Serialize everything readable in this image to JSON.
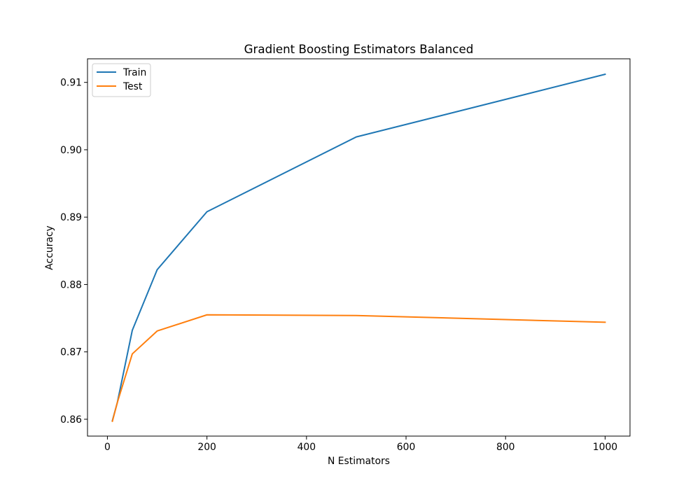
{
  "chart_data": {
    "type": "line",
    "title": "Gradient Boosting Estimators Balanced",
    "xlabel": "N Estimators",
    "ylabel": "Accuracy",
    "xlim": [
      -40,
      1050
    ],
    "ylim": [
      0.8575,
      0.9135
    ],
    "xticks": [
      0,
      200,
      400,
      600,
      800,
      1000
    ],
    "xtick_labels": [
      "0",
      "200",
      "400",
      "600",
      "800",
      "1000"
    ],
    "yticks": [
      0.86,
      0.87,
      0.88,
      0.89,
      0.9,
      0.91
    ],
    "ytick_labels": [
      "0.86",
      "0.87",
      "0.88",
      "0.89",
      "0.90",
      "0.91"
    ],
    "grid": false,
    "legend_position": "upper left",
    "x": [
      10,
      20,
      50,
      100,
      200,
      500,
      1000
    ],
    "series": [
      {
        "name": "Train",
        "color": "#1f77b4",
        "values": [
          0.8598,
          0.8625,
          0.8732,
          0.8822,
          0.8908,
          0.9019,
          0.9112
        ]
      },
      {
        "name": "Test",
        "color": "#ff7f0e",
        "values": [
          0.8597,
          0.8625,
          0.8697,
          0.8731,
          0.8755,
          0.8754,
          0.8744
        ]
      }
    ]
  }
}
